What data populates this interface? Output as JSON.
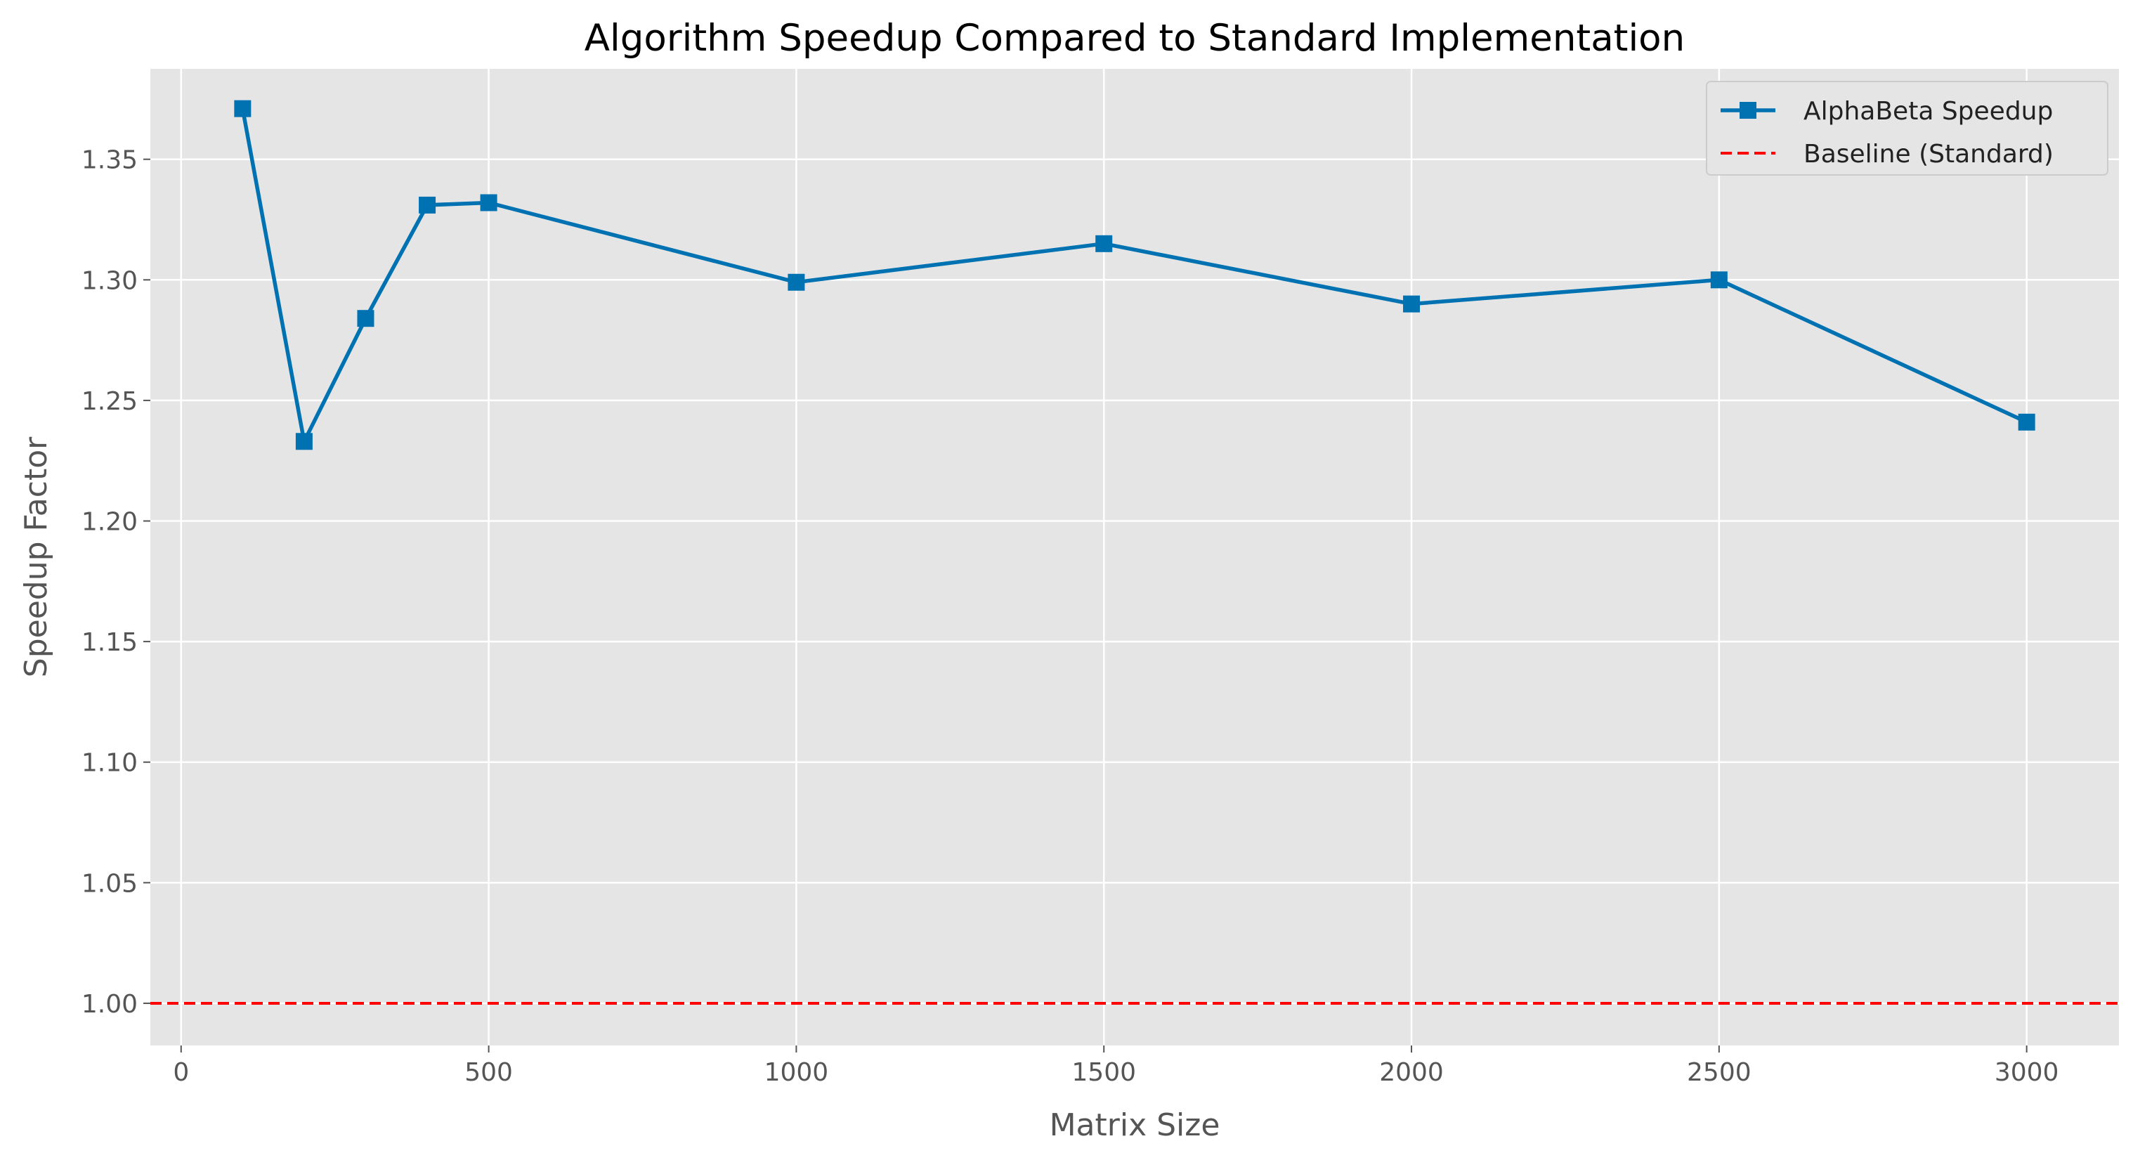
{
  "chart_data": {
    "type": "line",
    "title": "Algorithm Speedup Compared to Standard Implementation",
    "xlabel": "Matrix Size",
    "ylabel": "Speedup Factor",
    "xlim": [
      -50,
      3150
    ],
    "ylim": [
      0.9825,
      1.3875
    ],
    "xticks": [
      0,
      500,
      1000,
      1500,
      2000,
      2500,
      3000
    ],
    "xtick_labels": [
      "0",
      "500",
      "1000",
      "1500",
      "2000",
      "2500",
      "3000"
    ],
    "yticks": [
      1.0,
      1.05,
      1.1,
      1.15,
      1.2,
      1.25,
      1.3,
      1.35
    ],
    "ytick_labels": [
      "1.00",
      "1.05",
      "1.10",
      "1.15",
      "1.20",
      "1.25",
      "1.30",
      "1.35"
    ],
    "grid": true,
    "legend_position": "top-right",
    "series": [
      {
        "name": "AlphaBeta Speedup",
        "color": "#0072b2",
        "marker": "square",
        "line_style": "solid",
        "x": [
          100,
          200,
          300,
          400,
          500,
          1000,
          1500,
          2000,
          2500,
          3000
        ],
        "y": [
          1.371,
          1.233,
          1.284,
          1.331,
          1.332,
          1.299,
          1.315,
          1.29,
          1.3,
          1.241
        ]
      }
    ],
    "reference_lines": [
      {
        "name": "Baseline (Standard)",
        "y": 1.0,
        "color": "#ff0000",
        "line_style": "dashed"
      }
    ],
    "colors": {
      "plot_background": "#e5e5e5",
      "grid": "#ffffff",
      "axis_text": "#555555"
    }
  }
}
